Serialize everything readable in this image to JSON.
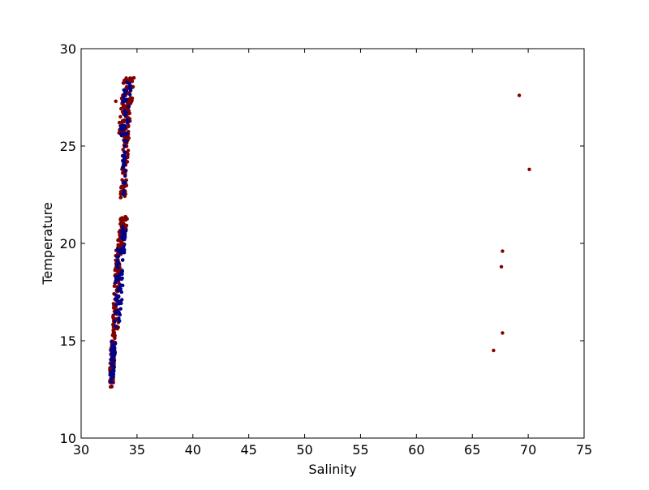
{
  "chart_data": {
    "type": "scatter",
    "title": "",
    "xlabel": "Salinity",
    "ylabel": "Temperature",
    "xlim": [
      30,
      75
    ],
    "ylim": [
      10,
      30
    ],
    "xticks": [
      30,
      35,
      40,
      45,
      50,
      55,
      60,
      65,
      70,
      75
    ],
    "yticks": [
      10,
      15,
      20,
      25,
      30
    ],
    "grid": false,
    "legend": "none",
    "colors": {
      "dark_red": "#800000",
      "dark_blue": "#00008b"
    },
    "point_groups": [
      {
        "color": "#800000",
        "x_range": [
          32.5,
          33.1
        ],
        "y_range": [
          12.6,
          15.5
        ],
        "count": 90
      },
      {
        "color": "#00008b",
        "x_range": [
          32.5,
          33.1
        ],
        "y_range": [
          12.8,
          15.0
        ],
        "count": 40
      },
      {
        "color": "#800000",
        "x_range": [
          32.8,
          33.6
        ],
        "y_range": [
          15.5,
          19.8
        ],
        "count": 110
      },
      {
        "color": "#00008b",
        "x_range": [
          32.9,
          33.9
        ],
        "y_range": [
          15.7,
          20.0
        ],
        "count": 60
      },
      {
        "color": "#800000",
        "x_range": [
          33.2,
          34.2
        ],
        "y_range": [
          19.8,
          21.4
        ],
        "count": 70
      },
      {
        "color": "#00008b",
        "x_range": [
          33.5,
          34.1
        ],
        "y_range": [
          19.6,
          21.0
        ],
        "count": 25
      },
      {
        "color": "#800000",
        "x_range": [
          33.5,
          34.3
        ],
        "y_range": [
          22.3,
          25.5
        ],
        "count": 80
      },
      {
        "color": "#00008b",
        "x_range": [
          33.6,
          34.1
        ],
        "y_range": [
          22.5,
          25.5
        ],
        "count": 25
      },
      {
        "color": "#800000",
        "x_range": [
          33.3,
          34.8
        ],
        "y_range": [
          25.5,
          28.6
        ],
        "count": 110
      },
      {
        "color": "#00008b",
        "x_range": [
          33.5,
          34.5
        ],
        "y_range": [
          25.5,
          28.3
        ],
        "count": 45
      }
    ],
    "outliers": [
      {
        "x": 69.2,
        "y": 27.6,
        "color": "#800000"
      },
      {
        "x": 70.1,
        "y": 23.8,
        "color": "#800000"
      },
      {
        "x": 67.7,
        "y": 19.6,
        "color": "#800000"
      },
      {
        "x": 67.6,
        "y": 18.8,
        "color": "#800000"
      },
      {
        "x": 67.7,
        "y": 15.4,
        "color": "#800000"
      },
      {
        "x": 66.9,
        "y": 14.5,
        "color": "#800000"
      },
      {
        "x": 33.1,
        "y": 27.3,
        "color": "#800000"
      }
    ]
  }
}
